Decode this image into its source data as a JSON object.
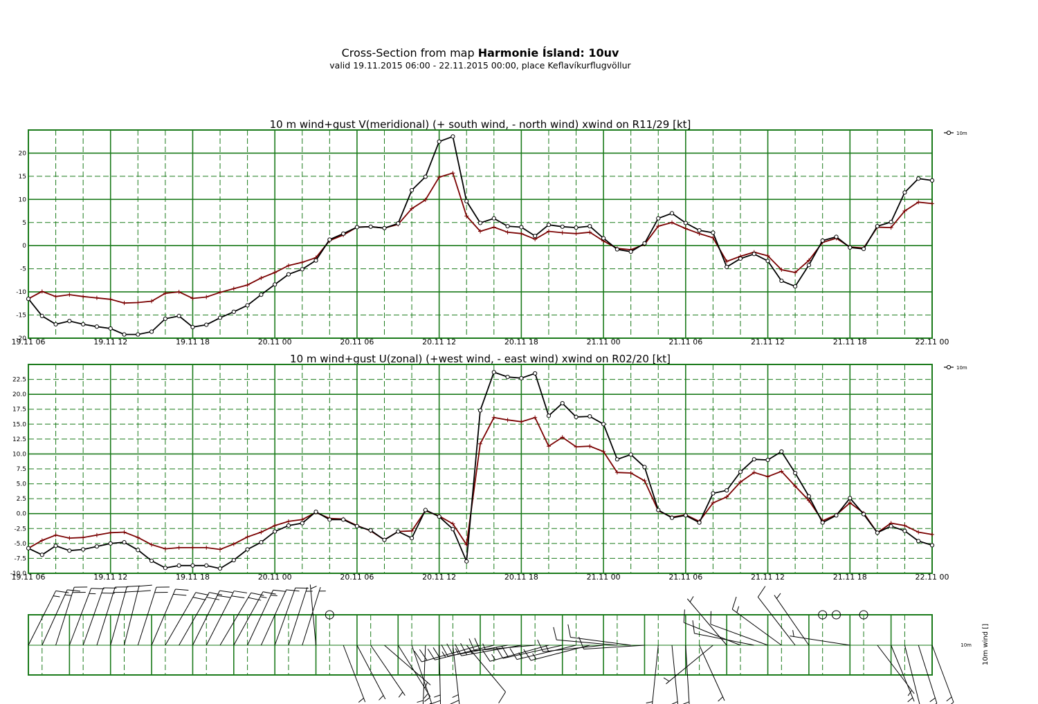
{
  "header": {
    "title_prefix": "Cross-Section from map ",
    "title_bold": "Harmonie Ísland: 10uv",
    "subtitle": "valid 19.11.2015 06:00 - 22.11.2015 00:00, place Keflavíkurflugvöllur"
  },
  "colors": {
    "grid": "#1a7a1a",
    "series_primary": "#000000",
    "series_secondary": "#7a0000"
  },
  "x_axis_ticks": [
    "19.11 06",
    "19.11 12",
    "19.11 18",
    "20.11 00",
    "20.11 06",
    "20.11 12",
    "20.11 18",
    "21.11 00",
    "21.11 06",
    "21.11 12",
    "21.11 18",
    "22.11 00"
  ],
  "chart_data": [
    {
      "type": "line",
      "title": "10 m wind+gust V(meridional) (+ south wind, - north wind) xwind on R11/29 [kt]",
      "x_range_hours": [
        0,
        66
      ],
      "ylim": [
        -20,
        25
      ],
      "ytick_labels": [
        "-20",
        "-15",
        "-10",
        "-5",
        "0",
        "5",
        "10",
        "15",
        "20"
      ],
      "ytick_values": [
        -20,
        -15,
        -10,
        -5,
        0,
        5,
        10,
        15,
        20
      ],
      "legend": {
        "placement": "top-right",
        "label": "10m"
      },
      "grid": true,
      "series": [
        {
          "name": "10m",
          "marker": "circle",
          "values": [
            -11.5,
            -15.2,
            -17.0,
            -16.3,
            -17.0,
            -17.5,
            -17.9,
            -19.2,
            -19.2,
            -18.6,
            -15.8,
            -15.2,
            -17.6,
            -17.1,
            -15.6,
            -14.3,
            -12.9,
            -10.6,
            -8.4,
            -6.2,
            -5.1,
            -3.2,
            1.3,
            2.6,
            4.0,
            4.1,
            3.8,
            4.8,
            12.0,
            14.9,
            22.5,
            23.6,
            9.6,
            4.9,
            5.9,
            4.2,
            4.0,
            2.1,
            4.5,
            4.1,
            3.9,
            4.2,
            1.6,
            -0.8,
            -1.3,
            0.5,
            5.9,
            7.0,
            4.9,
            3.3,
            2.8,
            -4.6,
            -2.8,
            -1.8,
            -3.3,
            -7.6,
            -8.8,
            -4.2,
            1.1,
            1.9,
            -0.4,
            -0.7,
            4.2,
            5.1,
            11.5,
            14.5,
            14.1
          ]
        },
        {
          "name": "",
          "marker": "plus",
          "values": [
            -11.5,
            -9.9,
            -11.0,
            -10.6,
            -11.0,
            -11.3,
            -11.6,
            -12.4,
            -12.3,
            -12.0,
            -10.3,
            -10.0,
            -11.4,
            -11.1,
            -10.1,
            -9.3,
            -8.5,
            -7.0,
            -5.8,
            -4.3,
            -3.6,
            -2.6,
            1.1,
            2.3,
            4.0,
            4.1,
            3.8,
            4.6,
            8.0,
            9.9,
            14.8,
            15.7,
            6.4,
            3.1,
            4.0,
            2.9,
            2.6,
            1.4,
            3.1,
            2.8,
            2.6,
            2.9,
            1.0,
            -0.6,
            -0.9,
            0.3,
            4.2,
            5.0,
            3.7,
            2.6,
            1.7,
            -3.4,
            -2.3,
            -1.4,
            -2.2,
            -5.2,
            -5.8,
            -3.2,
            0.7,
            1.6,
            -0.3,
            -0.5,
            4.0,
            3.9,
            7.5,
            9.4,
            9.1
          ]
        }
      ]
    },
    {
      "type": "line",
      "title": "10 m wind+gust U(zonal) (+west wind, - east wind) xwind on R02/20 [kt]",
      "x_range_hours": [
        0,
        66
      ],
      "ylim": [
        -10,
        25
      ],
      "ytick_labels": [
        "-10.0",
        "-7.5",
        "-5.0",
        "-2.5",
        "0.0",
        "2.5",
        "5.0",
        "7.5",
        "10.0",
        "12.5",
        "15.0",
        "17.5",
        "20.0",
        "22.5"
      ],
      "ytick_values": [
        -10,
        -7.5,
        -5,
        -2.5,
        0,
        2.5,
        5,
        7.5,
        10,
        12.5,
        15,
        17.5,
        20,
        22.5
      ],
      "legend": {
        "placement": "top-right",
        "label": "10m"
      },
      "grid": true,
      "series": [
        {
          "name": "10m",
          "marker": "circle",
          "values": [
            -5.8,
            -6.9,
            -5.4,
            -6.2,
            -6.0,
            -5.5,
            -5.0,
            -4.8,
            -6.1,
            -7.9,
            -9.1,
            -8.7,
            -8.7,
            -8.7,
            -9.2,
            -7.8,
            -6.0,
            -4.8,
            -3.0,
            -2.0,
            -1.6,
            0.3,
            -1.0,
            -1.0,
            -2.1,
            -2.8,
            -4.4,
            -3.0,
            -4.1,
            0.6,
            -0.5,
            -2.6,
            -8.0,
            17.3,
            23.7,
            22.9,
            22.7,
            23.5,
            16.4,
            18.5,
            16.2,
            16.3,
            15.0,
            9.1,
            9.9,
            7.8,
            0.6,
            -0.7,
            -0.3,
            -1.5,
            3.4,
            3.9,
            7.0,
            9.1,
            9.0,
            10.4,
            6.8,
            2.9,
            -1.5,
            -0.3,
            2.6,
            -0.1,
            -3.2,
            -2.1,
            -2.9,
            -4.6,
            -5.3
          ]
        },
        {
          "name": "",
          "marker": "plus",
          "values": [
            -5.8,
            -4.5,
            -3.6,
            -4.1,
            -4.0,
            -3.6,
            -3.2,
            -3.1,
            -4.0,
            -5.2,
            -5.9,
            -5.7,
            -5.7,
            -5.7,
            -6.0,
            -5.1,
            -3.9,
            -3.1,
            -2.0,
            -1.3,
            -1.0,
            0.2,
            -0.8,
            -0.9,
            -2.0,
            -2.9,
            -4.4,
            -3.0,
            -2.9,
            0.5,
            -0.4,
            -1.7,
            -5.2,
            11.7,
            16.1,
            15.7,
            15.4,
            16.1,
            11.3,
            12.8,
            11.2,
            11.3,
            10.4,
            6.9,
            6.8,
            5.5,
            0.5,
            -0.6,
            -0.2,
            -1.3,
            1.8,
            2.8,
            5.3,
            6.9,
            6.2,
            7.1,
            4.6,
            2.2,
            -1.2,
            -0.2,
            1.8,
            0.1,
            -3.2,
            -1.6,
            -2.0,
            -3.1,
            -3.5
          ]
        }
      ]
    }
  ],
  "wind_panel": {
    "axis_label": "10m wind []",
    "row_label": "10m"
  }
}
